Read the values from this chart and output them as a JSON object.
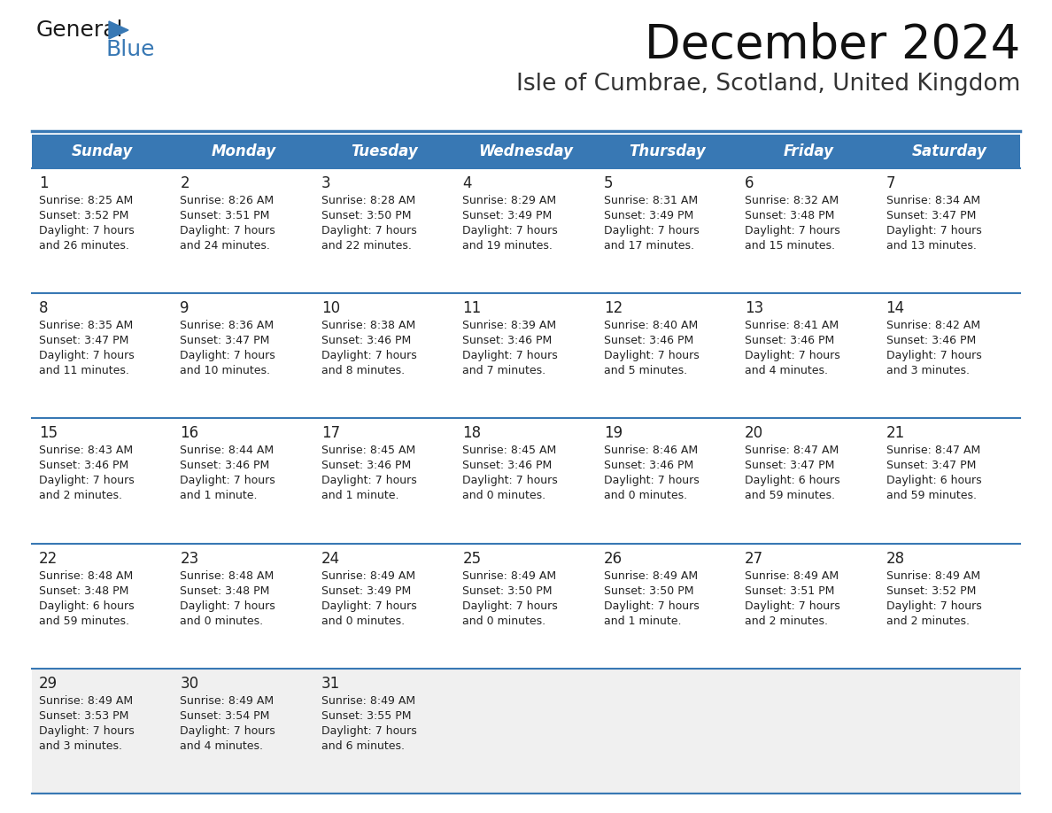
{
  "title": "December 2024",
  "subtitle": "Isle of Cumbrae, Scotland, United Kingdom",
  "days_of_week": [
    "Sunday",
    "Monday",
    "Tuesday",
    "Wednesday",
    "Thursday",
    "Friday",
    "Saturday"
  ],
  "header_bg": "#3878b4",
  "header_text": "#ffffff",
  "row_bg": "#ffffff",
  "last_row_bg": "#f0f0f0",
  "text_color": "#222222",
  "border_color": "#3878b4",
  "separator_color": "#3878b4",
  "logo_general_color": "#1a1a1a",
  "logo_blue_color": "#3878b4",
  "logo_triangle_color": "#3878b4",
  "calendar_data": [
    [
      {
        "day": 1,
        "sunrise": "8:25 AM",
        "sunset": "3:52 PM",
        "daylight": "7 hours and 26 minutes"
      },
      {
        "day": 2,
        "sunrise": "8:26 AM",
        "sunset": "3:51 PM",
        "daylight": "7 hours and 24 minutes"
      },
      {
        "day": 3,
        "sunrise": "8:28 AM",
        "sunset": "3:50 PM",
        "daylight": "7 hours and 22 minutes"
      },
      {
        "day": 4,
        "sunrise": "8:29 AM",
        "sunset": "3:49 PM",
        "daylight": "7 hours and 19 minutes"
      },
      {
        "day": 5,
        "sunrise": "8:31 AM",
        "sunset": "3:49 PM",
        "daylight": "7 hours and 17 minutes"
      },
      {
        "day": 6,
        "sunrise": "8:32 AM",
        "sunset": "3:48 PM",
        "daylight": "7 hours and 15 minutes"
      },
      {
        "day": 7,
        "sunrise": "8:34 AM",
        "sunset": "3:47 PM",
        "daylight": "7 hours and 13 minutes"
      }
    ],
    [
      {
        "day": 8,
        "sunrise": "8:35 AM",
        "sunset": "3:47 PM",
        "daylight": "7 hours and 11 minutes"
      },
      {
        "day": 9,
        "sunrise": "8:36 AM",
        "sunset": "3:47 PM",
        "daylight": "7 hours and 10 minutes"
      },
      {
        "day": 10,
        "sunrise": "8:38 AM",
        "sunset": "3:46 PM",
        "daylight": "7 hours and 8 minutes"
      },
      {
        "day": 11,
        "sunrise": "8:39 AM",
        "sunset": "3:46 PM",
        "daylight": "7 hours and 7 minutes"
      },
      {
        "day": 12,
        "sunrise": "8:40 AM",
        "sunset": "3:46 PM",
        "daylight": "7 hours and 5 minutes"
      },
      {
        "day": 13,
        "sunrise": "8:41 AM",
        "sunset": "3:46 PM",
        "daylight": "7 hours and 4 minutes"
      },
      {
        "day": 14,
        "sunrise": "8:42 AM",
        "sunset": "3:46 PM",
        "daylight": "7 hours and 3 minutes"
      }
    ],
    [
      {
        "day": 15,
        "sunrise": "8:43 AM",
        "sunset": "3:46 PM",
        "daylight": "7 hours and 2 minutes"
      },
      {
        "day": 16,
        "sunrise": "8:44 AM",
        "sunset": "3:46 PM",
        "daylight": "7 hours and 1 minute"
      },
      {
        "day": 17,
        "sunrise": "8:45 AM",
        "sunset": "3:46 PM",
        "daylight": "7 hours and 1 minute"
      },
      {
        "day": 18,
        "sunrise": "8:45 AM",
        "sunset": "3:46 PM",
        "daylight": "7 hours and 0 minutes"
      },
      {
        "day": 19,
        "sunrise": "8:46 AM",
        "sunset": "3:46 PM",
        "daylight": "7 hours and 0 minutes"
      },
      {
        "day": 20,
        "sunrise": "8:47 AM",
        "sunset": "3:47 PM",
        "daylight": "6 hours and 59 minutes"
      },
      {
        "day": 21,
        "sunrise": "8:47 AM",
        "sunset": "3:47 PM",
        "daylight": "6 hours and 59 minutes"
      }
    ],
    [
      {
        "day": 22,
        "sunrise": "8:48 AM",
        "sunset": "3:48 PM",
        "daylight": "6 hours and 59 minutes"
      },
      {
        "day": 23,
        "sunrise": "8:48 AM",
        "sunset": "3:48 PM",
        "daylight": "7 hours and 0 minutes"
      },
      {
        "day": 24,
        "sunrise": "8:49 AM",
        "sunset": "3:49 PM",
        "daylight": "7 hours and 0 minutes"
      },
      {
        "day": 25,
        "sunrise": "8:49 AM",
        "sunset": "3:50 PM",
        "daylight": "7 hours and 0 minutes"
      },
      {
        "day": 26,
        "sunrise": "8:49 AM",
        "sunset": "3:50 PM",
        "daylight": "7 hours and 1 minute"
      },
      {
        "day": 27,
        "sunrise": "8:49 AM",
        "sunset": "3:51 PM",
        "daylight": "7 hours and 2 minutes"
      },
      {
        "day": 28,
        "sunrise": "8:49 AM",
        "sunset": "3:52 PM",
        "daylight": "7 hours and 2 minutes"
      }
    ],
    [
      {
        "day": 29,
        "sunrise": "8:49 AM",
        "sunset": "3:53 PM",
        "daylight": "7 hours and 3 minutes"
      },
      {
        "day": 30,
        "sunrise": "8:49 AM",
        "sunset": "3:54 PM",
        "daylight": "7 hours and 4 minutes"
      },
      {
        "day": 31,
        "sunrise": "8:49 AM",
        "sunset": "3:55 PM",
        "daylight": "7 hours and 6 minutes"
      },
      null,
      null,
      null,
      null
    ]
  ]
}
